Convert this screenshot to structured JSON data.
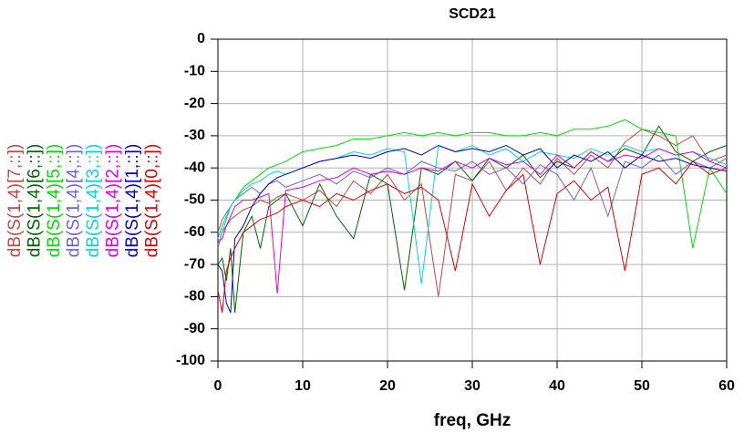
{
  "chart_data": {
    "type": "line",
    "title": "SCD21",
    "x_label": "freq, GHz",
    "x": [
      0,
      0.5,
      1,
      1.5,
      2,
      3,
      4,
      5,
      6,
      7,
      8,
      10,
      12,
      14,
      16,
      18,
      20,
      22,
      24,
      26,
      28,
      30,
      32,
      34,
      36,
      38,
      40,
      42,
      44,
      46,
      48,
      50,
      52,
      54,
      56,
      58,
      60
    ],
    "series": [
      {
        "name": "dB(S(1,4)[7,::])",
        "color": "#c04848",
        "values": [
          -65,
          -60,
          -58,
          -56,
          -55,
          -53,
          -52,
          -50,
          -51,
          -49,
          -48,
          -50,
          -47,
          -52,
          -44,
          -48,
          -42,
          -50,
          -45,
          -80,
          -42,
          -44,
          -38,
          -47,
          -40,
          -45,
          -37,
          -42,
          -36,
          -40,
          -32,
          -28,
          -30,
          -33,
          -30,
          -38,
          -36
        ]
      },
      {
        "name": "dB(S(1,4)[6,::])",
        "color": "#006400",
        "values": [
          -70,
          -68,
          -75,
          -65,
          -85,
          -60,
          -55,
          -65,
          -52,
          -50,
          -48,
          -58,
          -45,
          -55,
          -62,
          -42,
          -45,
          -78,
          -40,
          -42,
          -38,
          -44,
          -37,
          -40,
          -36,
          -43,
          -38,
          -40,
          -35,
          -38,
          -34,
          -36,
          -27,
          -35,
          -38,
          -35,
          -33
        ]
      },
      {
        "name": "dB(S(1,4)[5,::])",
        "color": "#00e000",
        "values": [
          -62,
          -58,
          -55,
          -52,
          -50,
          -46,
          -44,
          -42,
          -40,
          -39,
          -38,
          -35,
          -34,
          -33,
          -31,
          -31,
          -30,
          -29,
          -30,
          -29,
          -30,
          -29,
          -29,
          -30,
          -30,
          -29,
          -30,
          -28,
          -28,
          -27,
          -25,
          -28,
          -29,
          -30,
          -65,
          -40,
          -48
        ]
      },
      {
        "name": "dB(S(1,4)[4,::])",
        "color": "#7060d0",
        "values": [
          -60,
          -56,
          -54,
          -52,
          -50,
          -48,
          -46,
          -48,
          -45,
          -44,
          -46,
          -44,
          -42,
          -45,
          -41,
          -43,
          -40,
          -42,
          -38,
          -40,
          -41,
          -38,
          -42,
          -40,
          -45,
          -39,
          -42,
          -50,
          -40,
          -55,
          -38,
          -40,
          -36,
          -42,
          -38,
          -40,
          -37
        ]
      },
      {
        "name": "dB(S(1,4)[3,::])",
        "color": "#00d8d8",
        "values": [
          -64,
          -60,
          -56,
          -52,
          -50,
          -47,
          -45,
          -44,
          -42,
          -41,
          -42,
          -40,
          -38,
          -37,
          -35,
          -36,
          -34,
          -35,
          -76,
          -33,
          -35,
          -33,
          -36,
          -34,
          -38,
          -35,
          -36,
          -37,
          -34,
          -36,
          -33,
          -35,
          -34,
          -36,
          -35,
          -37,
          -39
        ]
      },
      {
        "name": "dB(S(1,4)[2,::])",
        "color": "#e000e0",
        "values": [
          -63,
          -62,
          -58,
          -55,
          -52,
          -50,
          -50,
          -49,
          -48,
          -79,
          -47,
          -46,
          -44,
          -43,
          -40,
          -42,
          -41,
          -42,
          -40,
          -41,
          -38,
          -40,
          -37,
          -39,
          -38,
          -42,
          -36,
          -40,
          -35,
          -38,
          -36,
          -37,
          -34,
          -36,
          -35,
          -38,
          -40
        ]
      },
      {
        "name": "dB(S(1,4)[1,::])",
        "color": "#0000d0",
        "values": [
          -70,
          -72,
          -82,
          -85,
          -62,
          -58,
          -52,
          -48,
          -45,
          -43,
          -42,
          -40,
          -38,
          -37,
          -36,
          -37,
          -35,
          -34,
          -36,
          -33,
          -35,
          -34,
          -35,
          -33,
          -36,
          -34,
          -40,
          -36,
          -38,
          -35,
          -40,
          -36,
          -38,
          -37,
          -39,
          -40,
          -41
        ]
      },
      {
        "name": "dB(S(1,4)[0,::])",
        "color": "#e00000",
        "values": [
          -78,
          -85,
          -72,
          -68,
          -65,
          -60,
          -58,
          -56,
          -55,
          -54,
          -52,
          -50,
          -52,
          -48,
          -50,
          -47,
          -45,
          -48,
          -46,
          -50,
          -72,
          -45,
          -55,
          -47,
          -42,
          -70,
          -48,
          -44,
          -50,
          -46,
          -72,
          -42,
          -40,
          -45,
          -38,
          -42,
          -40
        ]
      }
    ],
    "xlim": [
      0,
      60
    ],
    "xticks": [
      0,
      10,
      20,
      30,
      40,
      50,
      60
    ],
    "ylim": [
      -100,
      0
    ],
    "yticks": [
      0,
      -10,
      -20,
      -30,
      -40,
      -50,
      -60,
      -70,
      -80,
      -90,
      -100
    ],
    "grid": true
  }
}
